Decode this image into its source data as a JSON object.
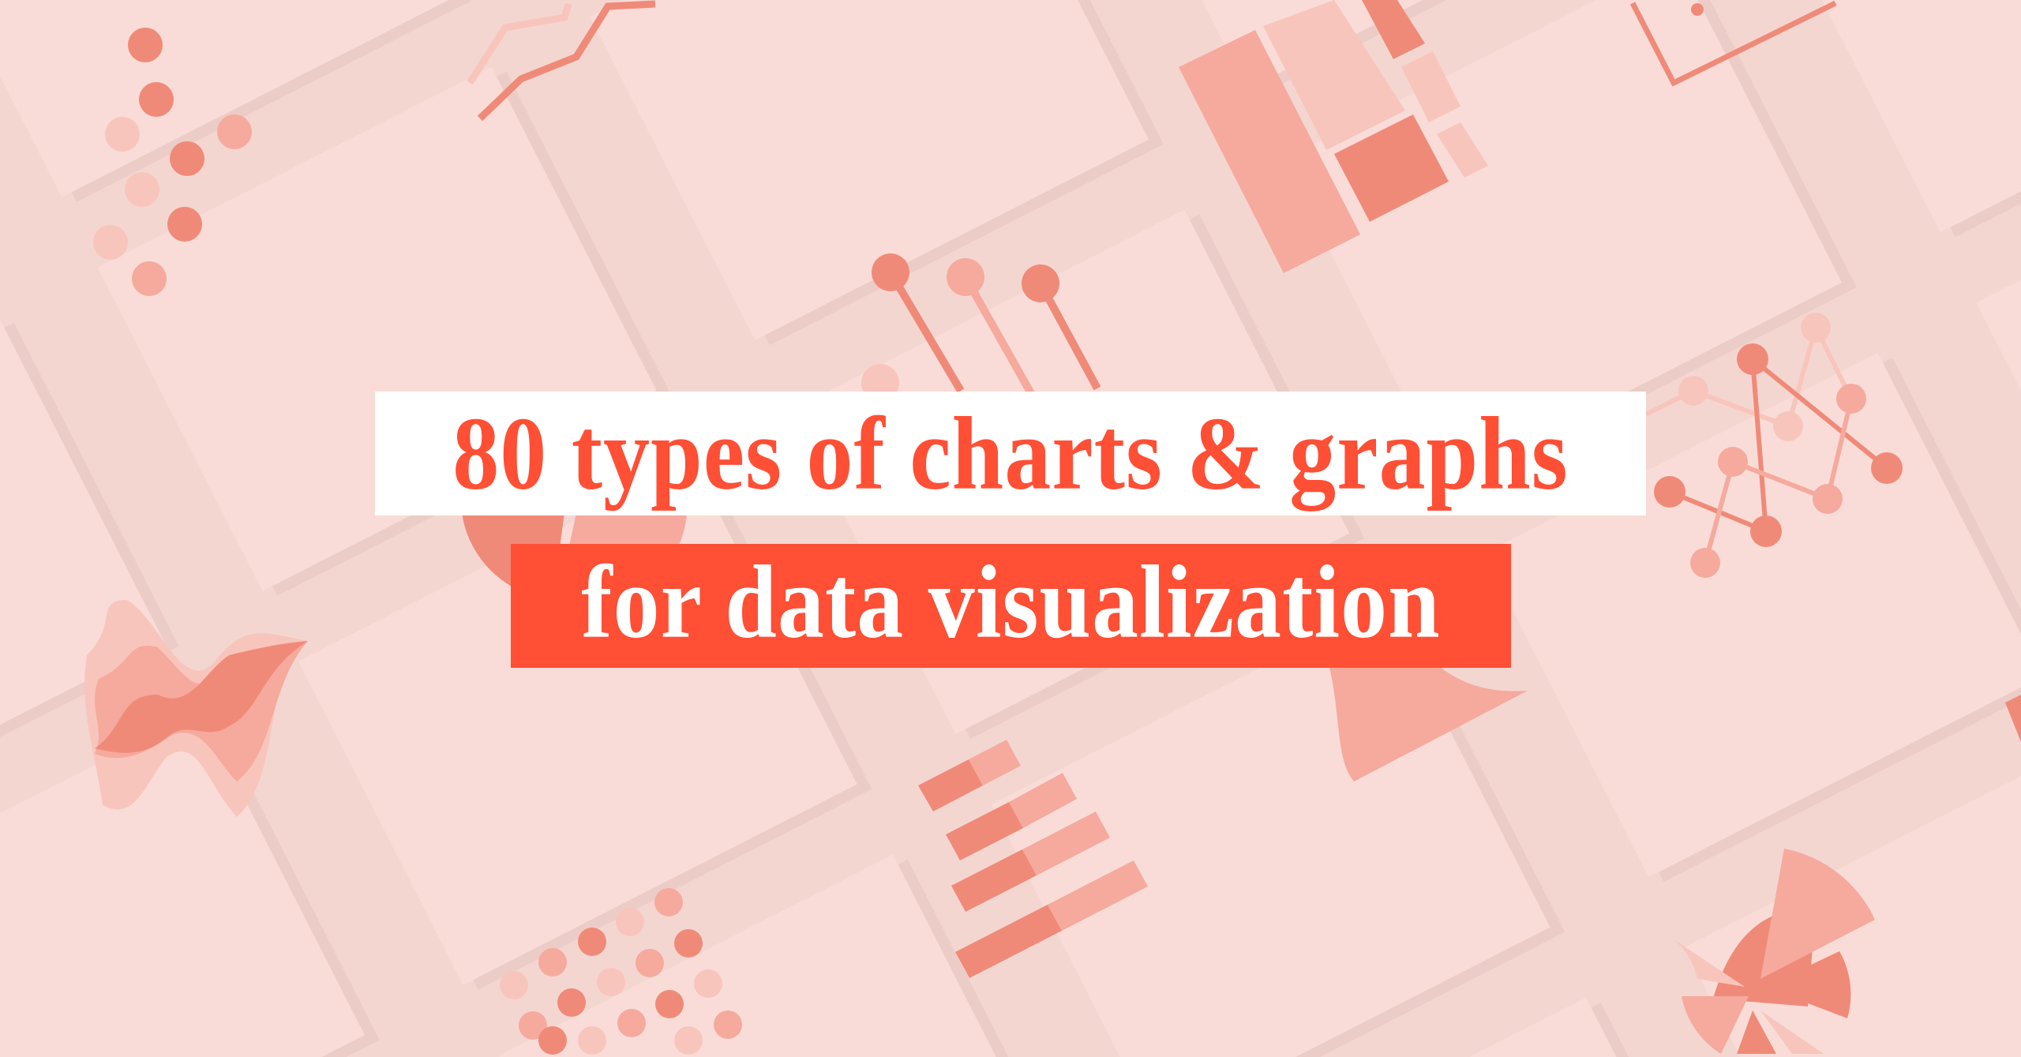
{
  "title": {
    "line1": "80 types of charts & graphs",
    "line2": "for data visualization"
  },
  "colors": {
    "background": "#f4d6d1",
    "card": "#f9dcd7",
    "accent_red": "#ff4f35",
    "chart_dark": "#f08a78",
    "chart_mid": "#f5aa9d",
    "chart_light": "#f8c5bc",
    "white": "#ffffff"
  },
  "illustrations": [
    "dot-plot-icon",
    "line-chart-icon",
    "treemap-icon",
    "lollipop-chart-icon",
    "network-graph-icon",
    "streamgraph-icon",
    "stacked-bar-chart-icon",
    "bubble-grid-icon",
    "pie-chart-icon",
    "pie-chart-icon",
    "violin-plot-icon"
  ]
}
